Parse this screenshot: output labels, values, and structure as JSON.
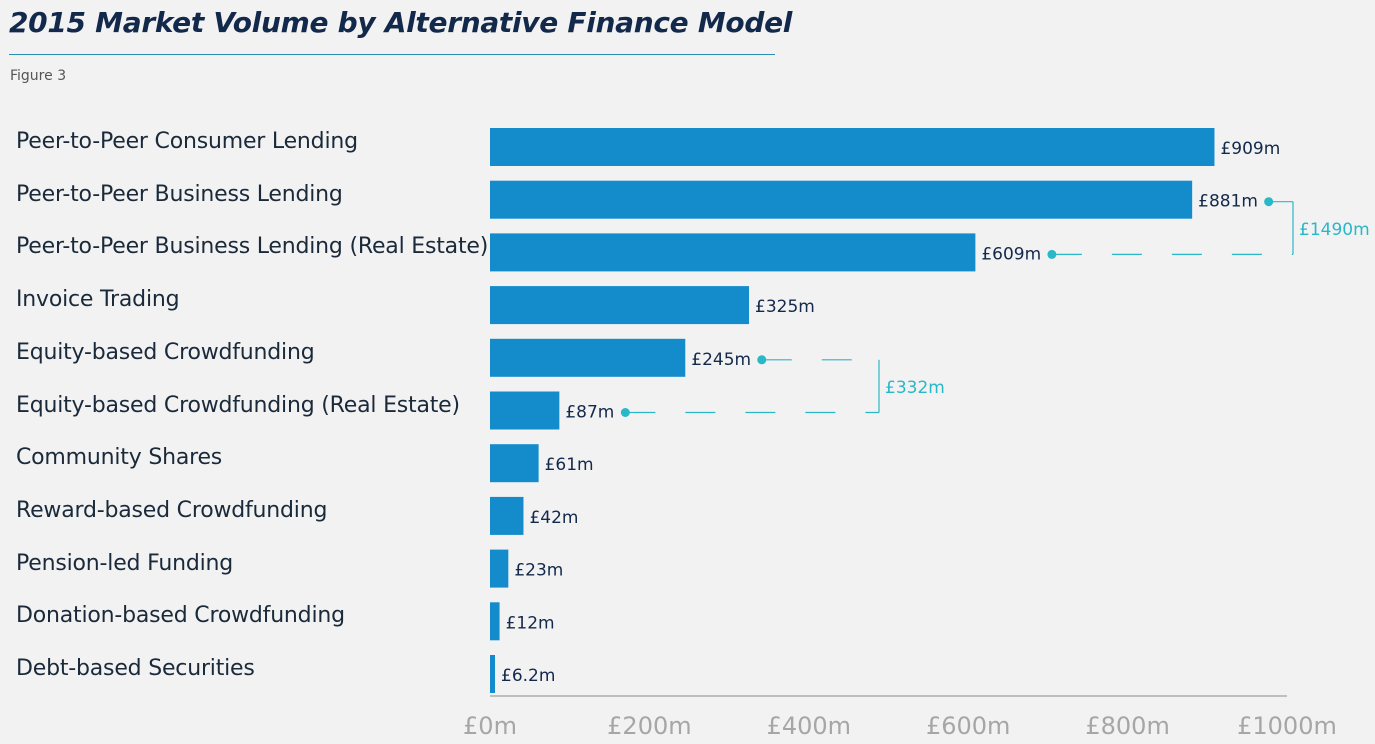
{
  "title": "2015 Market Volume by Alternative Finance Model",
  "figure_label": "Figure 3",
  "colors": {
    "bar": "#148ccc",
    "value_label": "#13294b",
    "bracket": "#29b8c8",
    "axis": "#bfbfbf",
    "tick_label": "#a6a6a6"
  },
  "chart_data": {
    "type": "bar",
    "orientation": "horizontal",
    "categories": [
      "Peer-to-Peer Consumer Lending",
      "Peer-to-Peer Business Lending",
      "Peer-to-Peer Business Lending (Real Estate)",
      "Invoice Trading",
      "Equity-based Crowdfunding",
      "Equity-based Crowdfunding (Real Estate)",
      "Community Shares",
      "Reward-based Crowdfunding",
      "Pension-led Funding",
      "Donation-based Crowdfunding",
      "Debt-based Securities"
    ],
    "values": [
      909,
      881,
      609,
      325,
      245,
      87,
      61,
      42,
      23,
      12,
      6.2
    ],
    "value_labels": [
      "£909m",
      "£881m",
      "£609m",
      "£325m",
      "£245m",
      "£87m",
      "£61m",
      "£42m",
      "£23m",
      "£12m",
      "£6.2m"
    ],
    "xlim": [
      0,
      1000
    ],
    "ticks": [
      0,
      200,
      400,
      600,
      800,
      1000
    ],
    "tick_labels": [
      "£0m",
      "£200m",
      "£400m",
      "£600m",
      "£800m",
      "£1000m"
    ],
    "grid": false,
    "annotations": [
      {
        "from_index": 1,
        "to_index": 2,
        "label": "£1490m"
      },
      {
        "from_index": 4,
        "to_index": 5,
        "label": "£332m"
      }
    ]
  }
}
